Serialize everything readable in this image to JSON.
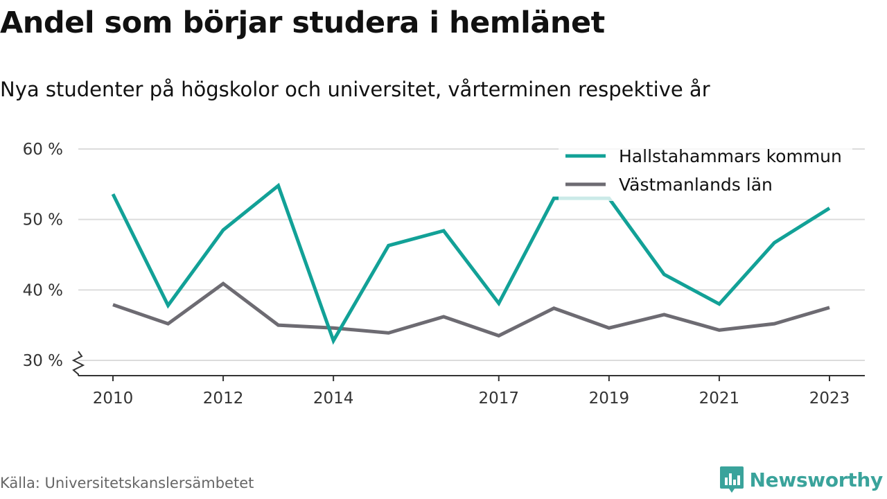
{
  "title": "Andel som börjar studera i hemlänet",
  "subtitle": "Nya studenter på högskolor och universitet, vårterminen respektive år",
  "source": "Källa: Universitetskanslersämbetet",
  "brand": {
    "name": "Newsworthy",
    "icon": "bar-chart-speech-bubble-icon",
    "color": "#3aa39b"
  },
  "chart_data": {
    "type": "line",
    "x": [
      2010,
      2011,
      2012,
      2013,
      2014,
      2015,
      2016,
      2017,
      2018,
      2019,
      2020,
      2021,
      2022,
      2023
    ],
    "x_tick_labels": [
      "2010",
      "2012",
      "2014",
      "2017",
      "2019",
      "2021",
      "2023"
    ],
    "y_tick_labels": [
      "60 %",
      "50 %",
      "40 %",
      "30 %"
    ],
    "ylim": [
      30,
      60
    ],
    "y_axis_break": true,
    "grid": true,
    "legend_position": "top-right",
    "series": [
      {
        "name": "Hallstahammars kommun",
        "color": "#12a197",
        "values": [
          53.6,
          37.8,
          48.5,
          54.8,
          32.8,
          46.3,
          48.4,
          38.1,
          53.0,
          53.0,
          42.2,
          38.0,
          46.7,
          51.6
        ]
      },
      {
        "name": "Västmanlands län",
        "color": "#6d6b72",
        "values": [
          37.9,
          35.2,
          40.9,
          35.0,
          34.6,
          33.9,
          36.2,
          33.5,
          37.4,
          34.6,
          36.5,
          34.3,
          35.2,
          37.5
        ]
      }
    ]
  }
}
